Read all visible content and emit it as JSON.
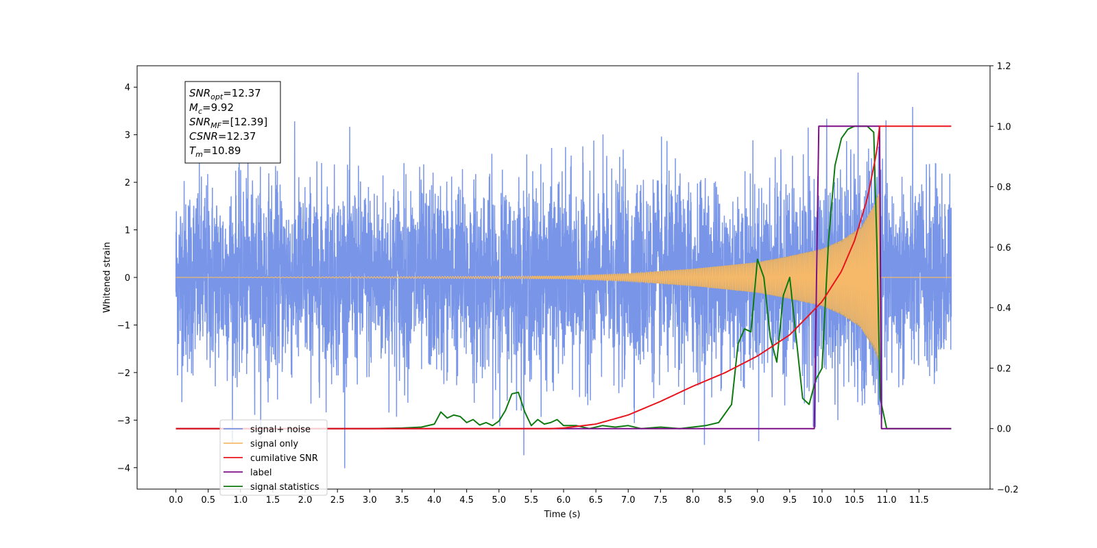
{
  "chart_data": {
    "type": "line",
    "xlabel": "Time (s)",
    "ylabel": "Whitened strain",
    "xlim": [
      -0.6,
      12.6
    ],
    "ylim": [
      -4.45,
      4.45
    ],
    "y2lim": [
      -0.2,
      1.2
    ],
    "x_ticks": [
      "0.0",
      "0.5",
      "1.0",
      "1.5",
      "2.0",
      "2.5",
      "3.0",
      "3.5",
      "4.0",
      "4.5",
      "5.0",
      "5.5",
      "6.0",
      "6.5",
      "7.0",
      "7.5",
      "8.0",
      "8.5",
      "9.0",
      "9.5",
      "10.0",
      "10.5",
      "11.0",
      "11.5"
    ],
    "y_ticks": [
      "4",
      "3",
      "2",
      "1",
      "0",
      "−1",
      "−2",
      "−3",
      "−4"
    ],
    "y2_ticks": [
      "1.2",
      "1.0",
      "0.8",
      "0.6",
      "0.4",
      "0.2",
      "0.0",
      "−0.2"
    ],
    "legend_position": "lower left",
    "annotation": {
      "lines": [
        {
          "main": "SNR",
          "sub": "opt",
          "rest": "=12.37"
        },
        {
          "main": "M",
          "sub": "c",
          "rest": "=9.92"
        },
        {
          "main": "SNR",
          "sub": "MF",
          "rest": "=[12.39]"
        },
        {
          "main": "CSNR",
          "sub": "",
          "rest": "=12.37"
        },
        {
          "main": "T",
          "sub": "m",
          "rest": "=10.89"
        }
      ]
    },
    "series": [
      {
        "name": "signal+ noise",
        "color": "#7895e8",
        "axis": "left",
        "x_range": [
          0,
          12
        ],
        "noise_std": 1.0
      },
      {
        "name": "signal only",
        "color": "#f5b969",
        "axis": "left",
        "x_range": [
          0,
          12
        ],
        "merger_time": 10.89,
        "envelope": [
          [
            0,
            0.0
          ],
          [
            6.0,
            0.03
          ],
          [
            7.0,
            0.08
          ],
          [
            8.0,
            0.18
          ],
          [
            9.0,
            0.32
          ],
          [
            9.5,
            0.45
          ],
          [
            10.0,
            0.6
          ],
          [
            10.3,
            0.78
          ],
          [
            10.6,
            1.05
          ],
          [
            10.8,
            1.5
          ],
          [
            10.89,
            1.8
          ]
        ]
      },
      {
        "name": "cumilative SNR",
        "color": "#e8141c",
        "axis": "right",
        "x": [
          0,
          5.8,
          6.0,
          6.5,
          7.0,
          7.5,
          8.0,
          8.5,
          9.0,
          9.5,
          10.0,
          10.3,
          10.5,
          10.7,
          10.85,
          10.89,
          12.0
        ],
        "values": [
          0,
          0,
          0.002,
          0.015,
          0.045,
          0.09,
          0.14,
          0.185,
          0.24,
          0.31,
          0.42,
          0.52,
          0.62,
          0.76,
          0.92,
          1.0,
          1.0
        ]
      },
      {
        "name": "label",
        "color": "#7d0f86",
        "axis": "right",
        "x": [
          0,
          9.88,
          9.95,
          10.89,
          10.92,
          12.0
        ],
        "values": [
          0,
          0,
          1.0,
          1.0,
          0,
          0
        ]
      },
      {
        "name": "signal statistics",
        "color": "#0d7a0f",
        "axis": "right",
        "x": [
          0,
          3.0,
          3.5,
          3.8,
          4.0,
          4.1,
          4.2,
          4.3,
          4.4,
          4.5,
          4.6,
          4.7,
          4.8,
          4.9,
          5.0,
          5.1,
          5.2,
          5.3,
          5.4,
          5.5,
          5.6,
          5.7,
          5.8,
          5.9,
          6.0,
          6.2,
          6.4,
          6.6,
          6.8,
          7.0,
          7.2,
          7.5,
          7.8,
          8.0,
          8.2,
          8.4,
          8.6,
          8.7,
          8.8,
          8.9,
          9.0,
          9.1,
          9.2,
          9.3,
          9.4,
          9.5,
          9.6,
          9.7,
          9.8,
          9.9,
          10.0,
          10.1,
          10.2,
          10.3,
          10.4,
          10.5,
          10.6,
          10.7,
          10.8,
          10.85,
          10.9,
          11.0,
          12.0
        ],
        "values": [
          0,
          0,
          0.002,
          0.005,
          0.015,
          0.055,
          0.035,
          0.045,
          0.04,
          0.02,
          0.03,
          0.012,
          0.02,
          0.01,
          0.025,
          0.06,
          0.115,
          0.12,
          0.055,
          0.01,
          0.03,
          0.015,
          0.02,
          0.03,
          0.01,
          0.01,
          0.0,
          0.01,
          0.005,
          0.01,
          0.0,
          0.005,
          0.0,
          0.005,
          0.01,
          0.02,
          0.08,
          0.28,
          0.33,
          0.32,
          0.56,
          0.5,
          0.3,
          0.22,
          0.44,
          0.5,
          0.3,
          0.1,
          0.08,
          0.16,
          0.2,
          0.62,
          0.87,
          0.96,
          0.99,
          1.0,
          1.0,
          1.0,
          0.98,
          0.6,
          0.1,
          0.0,
          0.0
        ]
      }
    ]
  }
}
